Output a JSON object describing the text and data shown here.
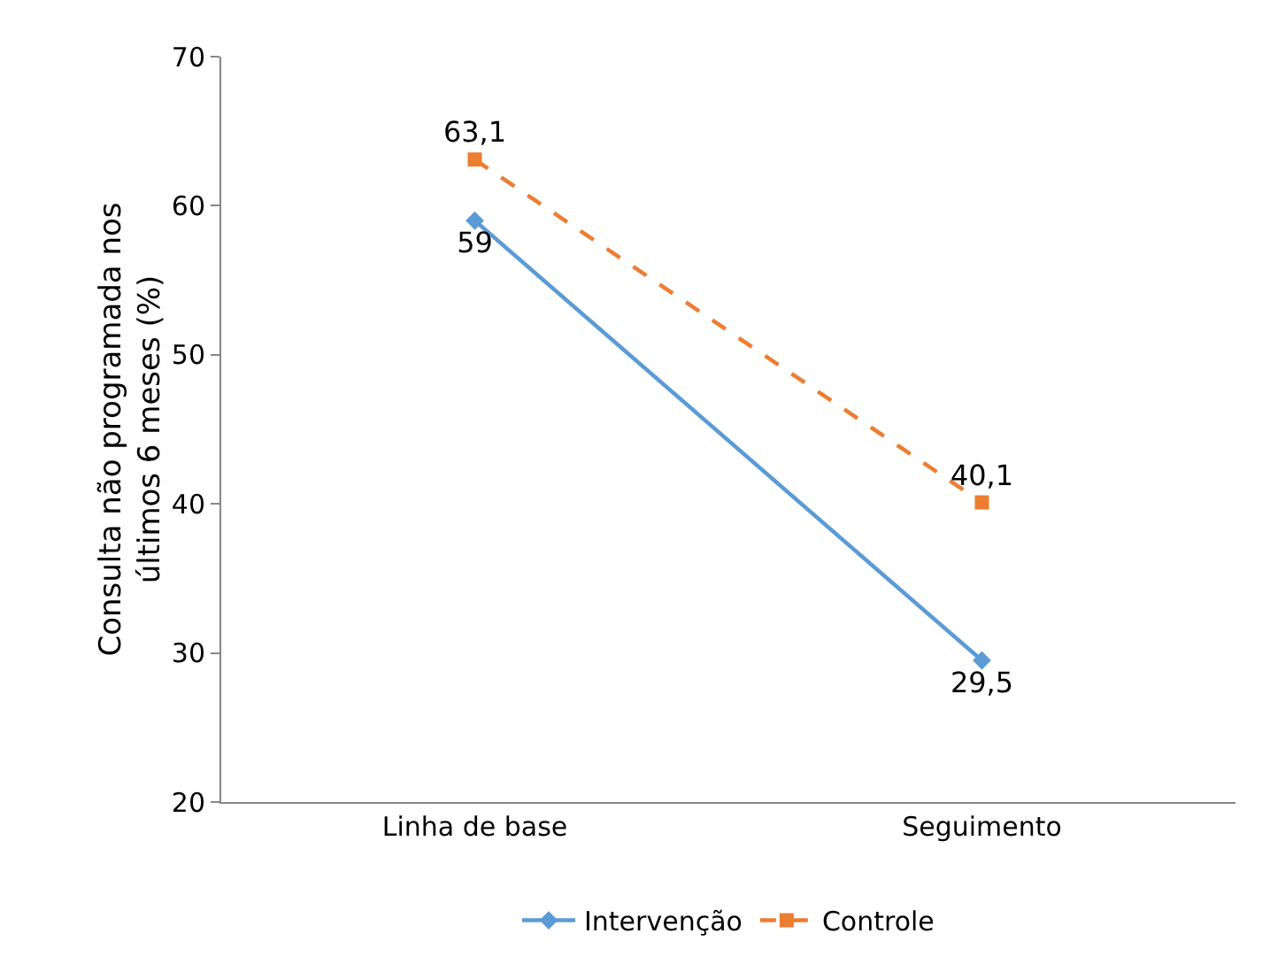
{
  "chart_data": {
    "type": "line",
    "ylabel": "Consulta não programada nos últimos 6 meses (%)",
    "categories": [
      "Linha de base",
      "Seguimento"
    ],
    "series": [
      {
        "name": "Intervenção",
        "color": "#5b9bd5",
        "values": [
          59,
          29.5
        ],
        "value_labels": [
          "59",
          "29,5"
        ],
        "marker": "diamond",
        "line_style": "solid"
      },
      {
        "name": "Controle",
        "color": "#ed7d31",
        "values": [
          63.1,
          40.1
        ],
        "value_labels": [
          "63,1",
          "40,1"
        ],
        "marker": "square",
        "line_style": "dashed"
      }
    ],
    "ylim": [
      20,
      70
    ],
    "yticks": [
      20,
      30,
      40,
      50,
      60,
      70
    ],
    "grid": false,
    "legend": "bottom"
  }
}
